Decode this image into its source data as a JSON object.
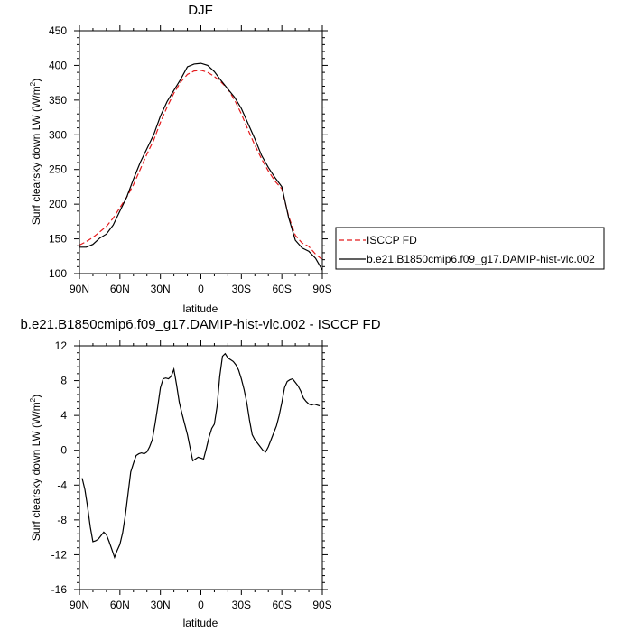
{
  "chart_data": [
    {
      "type": "line",
      "title": "DJF",
      "xlabel": "latitude",
      "ylabel": "Surf clearsky down LW (W/m",
      "ylabel_sup": "2",
      "ylabel_close": ")",
      "x_tick_labels": [
        "90N",
        "60N",
        "30N",
        "0",
        "30S",
        "60S",
        "90S"
      ],
      "x_ticks": [
        90,
        60,
        30,
        0,
        -30,
        -60,
        -90
      ],
      "xlim": [
        90,
        -90
      ],
      "y_ticks": [
        100,
        150,
        200,
        250,
        300,
        350,
        400,
        450
      ],
      "ylim": [
        100,
        450
      ],
      "grid": false,
      "legend": "outside-right",
      "x": [
        90,
        85,
        80,
        75,
        70,
        65,
        60,
        55,
        50,
        45,
        40,
        35,
        30,
        25,
        20,
        15,
        10,
        5,
        0,
        -5,
        -10,
        -15,
        -20,
        -25,
        -30,
        -35,
        -40,
        -45,
        -50,
        -55,
        -60,
        -65,
        -70,
        -75,
        -80,
        -85,
        -90
      ],
      "series": [
        {
          "name": "ISCCP FD",
          "color": "#e41a1c",
          "dash": "dashed",
          "values": [
            141,
            146,
            152,
            160,
            168,
            180,
            195,
            210,
            228,
            250,
            272,
            292,
            318,
            340,
            360,
            376,
            387,
            392,
            393,
            390,
            384,
            376,
            366,
            350,
            330,
            307,
            285,
            265,
            248,
            233,
            222,
            183,
            155,
            144,
            139,
            128,
            120
          ]
        },
        {
          "name": "b.e21.B1850cmip6.f09_g17.DAMIP-hist-vlc.002",
          "color": "#000000",
          "dash": "solid",
          "values": [
            138,
            138,
            142,
            151,
            157,
            170,
            190,
            210,
            236,
            260,
            280,
            300,
            327,
            348,
            364,
            380,
            398,
            402,
            403,
            400,
            391,
            378,
            366,
            354,
            338,
            316,
            294,
            270,
            253,
            238,
            225,
            181,
            148,
            137,
            132,
            122,
            105
          ]
        }
      ]
    },
    {
      "type": "line",
      "title": "b.e21.B1850cmip6.f09_g17.DAMIP-hist-vlc.002 - ISCCP FD",
      "xlabel": "latitude",
      "ylabel": "Surf clearsky down LW (W/m",
      "ylabel_sup": "2",
      "ylabel_close": ")",
      "x_tick_labels": [
        "90N",
        "60N",
        "30N",
        "0",
        "30S",
        "60S",
        "90S"
      ],
      "x_ticks": [
        90,
        60,
        30,
        0,
        -30,
        -60,
        -90
      ],
      "xlim": [
        90,
        -90
      ],
      "y_tick_labels": [
        "12",
        "8",
        "4",
        "0",
        "-4",
        "-8",
        "-12",
        "-16"
      ],
      "y_ticks": [
        12,
        8,
        4,
        0,
        -4,
        -8,
        -12,
        -16
      ],
      "ylim": [
        -16,
        12
      ],
      "grid": false,
      "x": [
        88,
        86,
        84,
        82,
        80,
        78,
        76,
        74,
        72,
        70,
        68,
        66,
        64,
        62,
        60,
        58,
        56,
        54,
        52,
        50,
        48,
        46,
        44,
        42,
        40,
        38,
        36,
        34,
        32,
        30,
        28,
        26,
        24,
        22,
        20,
        18,
        16,
        14,
        12,
        10,
        8,
        6,
        4,
        2,
        0,
        -2,
        -4,
        -6,
        -8,
        -10,
        -12,
        -14,
        -16,
        -18,
        -20,
        -22,
        -24,
        -26,
        -28,
        -30,
        -32,
        -34,
        -36,
        -38,
        -40,
        -42,
        -44,
        -46,
        -48,
        -50,
        -52,
        -54,
        -56,
        -58,
        -60,
        -62,
        -64,
        -66,
        -68,
        -70,
        -72,
        -74,
        -76,
        -78,
        -80,
        -82,
        -84,
        -86,
        -88
      ],
      "series": [
        {
          "name": "",
          "color": "#000000",
          "dash": "solid",
          "values": [
            -3.2,
            -4.5,
            -6.5,
            -8.8,
            -10.5,
            -10.4,
            -10.2,
            -9.8,
            -9.4,
            -9.7,
            -10.5,
            -11.4,
            -12.3,
            -11.5,
            -10.8,
            -9.5,
            -7.5,
            -5,
            -2.5,
            -1.5,
            -0.6,
            -0.4,
            -0.3,
            -0.4,
            -0.2,
            0.4,
            1.2,
            3,
            5,
            7.2,
            8.2,
            8.3,
            8.2,
            8.5,
            9.3,
            7.5,
            5.5,
            4.2,
            3,
            1.8,
            0.3,
            -1.2,
            -1.0,
            -0.8,
            -0.9,
            -1.0,
            0.2,
            1.5,
            2.5,
            3,
            5,
            8.5,
            10.8,
            11.1,
            10.6,
            10.4,
            10.2,
            9.8,
            9.2,
            8.2,
            7.0,
            5.5,
            3.5,
            1.8,
            1.2,
            0.8,
            0.4,
            0,
            -0.2,
            0.4,
            1.2,
            2,
            2.8,
            4,
            5.5,
            7.2,
            7.9,
            8.1,
            8.2,
            7.8,
            7.4,
            6.8,
            6.0,
            5.6,
            5.3,
            5.2,
            5.3,
            5.2,
            5.1
          ]
        }
      ]
    }
  ]
}
